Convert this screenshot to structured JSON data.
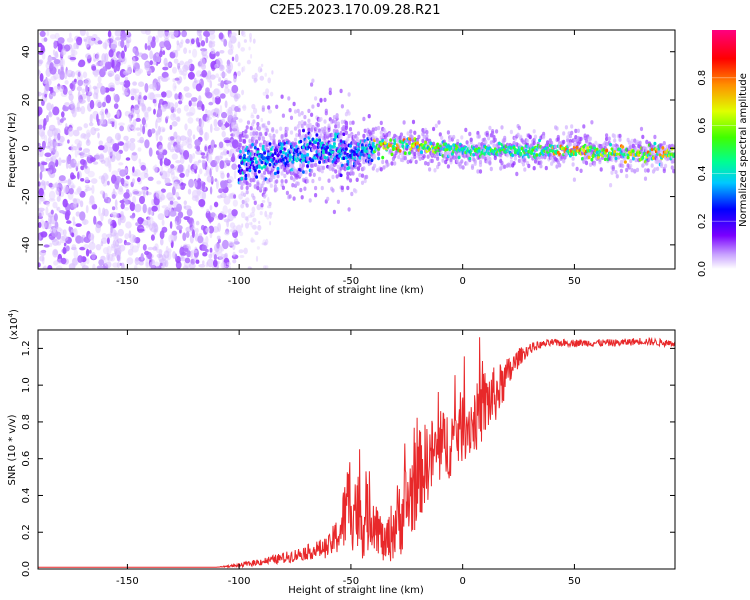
{
  "title": "C2E5.2023.170.09.28.R21",
  "colors": {
    "snr_line": "#e8282a",
    "colormap": [
      "#ffffff",
      "#c9a3ff",
      "#7a00ff",
      "#0000ff",
      "#00c8ff",
      "#00ff90",
      "#40ff00",
      "#e0ff00",
      "#ff9000",
      "#ff0000",
      "#ff0080"
    ]
  },
  "chart_data": [
    {
      "type": "heatmap",
      "xlabel": "Height of straight line (km)",
      "ylabel": "Frequency (Hz)",
      "xlim": [
        -190,
        95
      ],
      "ylim": [
        -50,
        49
      ],
      "xticks": [
        -150,
        -100,
        -50,
        0,
        50
      ],
      "yticks": [
        -40,
        -20,
        0,
        20,
        40
      ],
      "colorbar": {
        "label": "Normalized spectral amplitude",
        "ticks": [
          0.0,
          0.2,
          0.4,
          0.6,
          0.8
        ],
        "range": [
          0,
          1
        ]
      },
      "ridge": {
        "x": [
          -100,
          -90,
          -80,
          -70,
          -60,
          -50,
          -40,
          -30,
          -20,
          -10,
          0,
          10,
          20,
          30,
          40,
          50,
          60,
          70,
          80,
          95
        ],
        "y": [
          -6,
          -4,
          -3,
          -1,
          0,
          -3,
          0,
          1,
          1,
          0,
          -1,
          -1,
          -1,
          -1,
          -1,
          -1,
          -2,
          -2,
          -2,
          -2
        ]
      }
    },
    {
      "type": "line",
      "xlabel": "Height of straight line (km)",
      "ylabel": "SNR (10 * v/v)",
      "yscale_label": "(x10",
      "yscale_exp": "4",
      "yscale_close": ")",
      "xlim": [
        -190,
        95
      ],
      "ylim": [
        0,
        1.3
      ],
      "xticks": [
        -150,
        -100,
        -50,
        0,
        50
      ],
      "yticks": [
        0.0,
        0.2,
        0.4,
        0.6,
        0.8,
        1.0,
        1.2
      ],
      "series": [
        {
          "x": [
            -190,
            -110,
            -100,
            -90,
            -80,
            -70,
            -60,
            -55,
            -50,
            -45,
            -40,
            -35,
            -30,
            -25,
            -20,
            -15,
            -10,
            -5,
            0,
            5,
            10,
            15,
            20,
            25,
            30,
            35,
            40,
            50,
            60,
            70,
            80,
            90,
            95
          ],
          "y": [
            0.01,
            0.01,
            0.02,
            0.04,
            0.06,
            0.09,
            0.12,
            0.2,
            0.4,
            0.25,
            0.3,
            0.12,
            0.25,
            0.35,
            0.5,
            0.6,
            0.65,
            0.7,
            0.78,
            0.8,
            0.9,
            0.95,
            1.05,
            1.15,
            1.2,
            1.22,
            1.23,
            1.23,
            1.23,
            1.23,
            1.24,
            1.23,
            1.23
          ],
          "noise": [
            0.0,
            0.0,
            0.01,
            0.02,
            0.03,
            0.04,
            0.06,
            0.12,
            0.3,
            0.2,
            0.18,
            0.1,
            0.2,
            0.25,
            0.25,
            0.22,
            0.2,
            0.2,
            0.2,
            0.18,
            0.2,
            0.15,
            0.1,
            0.05,
            0.03,
            0.02,
            0.02,
            0.02,
            0.02,
            0.02,
            0.02,
            0.02,
            0.02
          ]
        }
      ]
    }
  ]
}
